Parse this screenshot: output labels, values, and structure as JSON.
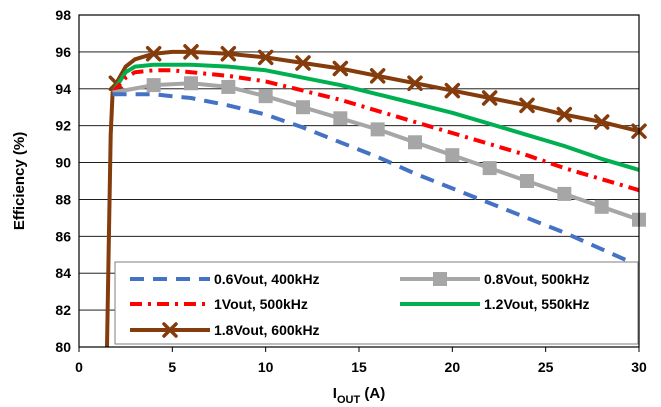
{
  "chart_data": {
    "type": "line",
    "xlabel": "I",
    "xlabel_sub": "OUT",
    "xlabel_unit": " (A)",
    "ylabel": "Efficiency (%)",
    "xlim": [
      0,
      30
    ],
    "ylim": [
      80,
      98
    ],
    "x_ticks": [
      "0",
      "5",
      "10",
      "15",
      "20",
      "25",
      "30"
    ],
    "y_ticks": [
      "80",
      "82",
      "84",
      "86",
      "88",
      "90",
      "92",
      "94",
      "96",
      "98"
    ],
    "grid": true,
    "legend_position": "bottom",
    "series": [
      {
        "name": "0.6Vout, 400kHz",
        "color": "#4472c4",
        "style": "dash",
        "marker": "none",
        "x": [
          1.8,
          2.5,
          3,
          4,
          5,
          6,
          8,
          10,
          12,
          14,
          16,
          18,
          20,
          22,
          24,
          26,
          28,
          30
        ],
        "y": [
          93.7,
          93.7,
          93.7,
          93.7,
          93.6,
          93.5,
          93.1,
          92.6,
          91.9,
          91.1,
          90.3,
          89.4,
          88.6,
          87.8,
          87.0,
          86.2,
          85.3,
          84.4
        ]
      },
      {
        "name": "0.8Vout, 500kHz",
        "color": "#a6a6a6",
        "style": "solid",
        "marker": "square",
        "x": [
          1.8,
          4,
          6,
          8,
          10,
          12,
          14,
          16,
          18,
          20,
          22,
          24,
          26,
          28,
          30
        ],
        "y": [
          93.8,
          94.2,
          94.3,
          94.1,
          93.6,
          93.0,
          92.4,
          91.8,
          91.1,
          90.4,
          89.7,
          89.0,
          88.3,
          87.6,
          86.9
        ]
      },
      {
        "name": "1Vout, 500kHz",
        "color": "#ff0000",
        "style": "dashdot",
        "marker": "none",
        "x": [
          1.8,
          2.5,
          3,
          4,
          5,
          6,
          8,
          10,
          12,
          14,
          16,
          18,
          20,
          22,
          24,
          26,
          28,
          30
        ],
        "y": [
          93.8,
          94.6,
          94.9,
          95.0,
          95.0,
          94.9,
          94.7,
          94.4,
          93.9,
          93.4,
          92.8,
          92.2,
          91.6,
          91.0,
          90.4,
          89.7,
          89.1,
          88.5
        ]
      },
      {
        "name": "1.2Vout, 550kHz",
        "color": "#00b050",
        "style": "solid",
        "marker": "none",
        "x": [
          1.8,
          2.5,
          3,
          4,
          5,
          6,
          8,
          10,
          12,
          14,
          16,
          18,
          20,
          22,
          24,
          26,
          28,
          30
        ],
        "y": [
          93.8,
          94.9,
          95.2,
          95.3,
          95.3,
          95.3,
          95.2,
          95.0,
          94.6,
          94.2,
          93.7,
          93.2,
          92.7,
          92.1,
          91.5,
          90.9,
          90.2,
          89.6
        ]
      },
      {
        "name": "1.8Vout, 600kHz",
        "color": "#843c0c",
        "style": "solid",
        "marker": "x",
        "x": [
          1.5,
          1.6,
          1.7,
          1.8,
          2,
          2.5,
          3,
          4,
          5,
          6,
          8,
          10,
          12,
          14,
          16,
          18,
          20,
          22,
          24,
          26,
          28,
          30
        ],
        "y": [
          80.0,
          86.0,
          91.5,
          93.8,
          94.3,
          95.2,
          95.6,
          95.9,
          96.0,
          96.0,
          95.9,
          95.7,
          95.4,
          95.1,
          94.7,
          94.3,
          93.9,
          93.5,
          93.1,
          92.6,
          92.2,
          91.7
        ],
        "marker_x": [
          2,
          4,
          6,
          8,
          10,
          12,
          14,
          16,
          18,
          20,
          22,
          24,
          26,
          28,
          30
        ]
      }
    ]
  }
}
